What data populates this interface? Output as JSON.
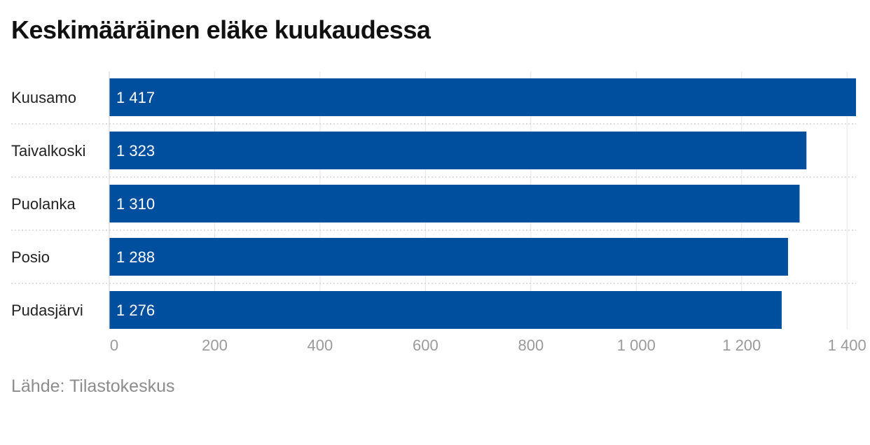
{
  "chart_data": {
    "type": "bar",
    "orientation": "horizontal",
    "title": "Keskimääräinen eläke kuukaudessa",
    "categories": [
      "Kuusamo",
      "Taivalkoski",
      "Puolanka",
      "Posio",
      "Pudasjärvi"
    ],
    "values": [
      1417,
      1323,
      1310,
      1288,
      1276
    ],
    "value_labels": [
      "1 417",
      "1 323",
      "1 310",
      "1 288",
      "1 276"
    ],
    "xlim": [
      0,
      1417
    ],
    "xticks": [
      0,
      200,
      400,
      600,
      800,
      1000,
      1200,
      1400
    ],
    "xtick_labels": [
      "0",
      "200",
      "400",
      "600",
      "800",
      "1 000",
      "1 200",
      "1 400"
    ],
    "grid": true,
    "bar_color": "#004f9f",
    "source": "Lähde: Tilastokeskus"
  }
}
